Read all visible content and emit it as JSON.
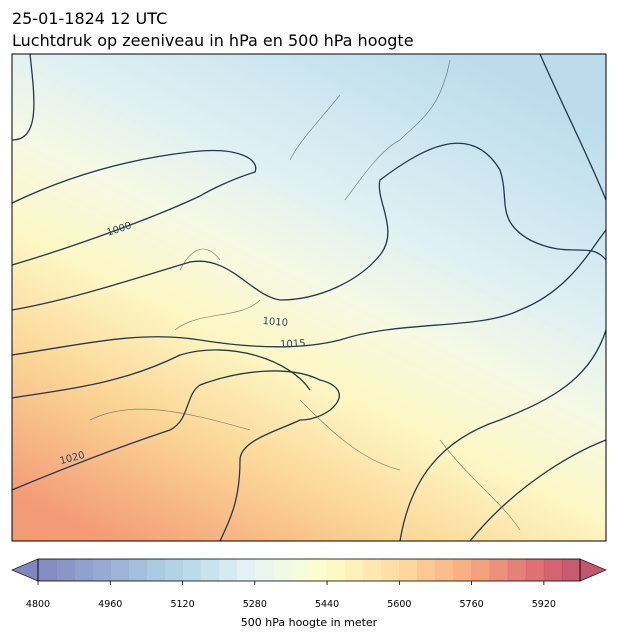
{
  "header": {
    "title": [
      "25-01-1824 12 UTC",
      "Luchtdruk op zeeniveau in hPa en 500 hPa hoogte"
    ]
  },
  "map": {
    "contour_labels": [
      "1000",
      "1010",
      "1015",
      "1020"
    ]
  },
  "colorbar": {
    "range": [
      4800,
      6000
    ],
    "ticks": [
      4800,
      4960,
      5120,
      5280,
      5440,
      5600,
      5760,
      5920
    ],
    "label": "500 hPa hoogte in meter"
  }
}
